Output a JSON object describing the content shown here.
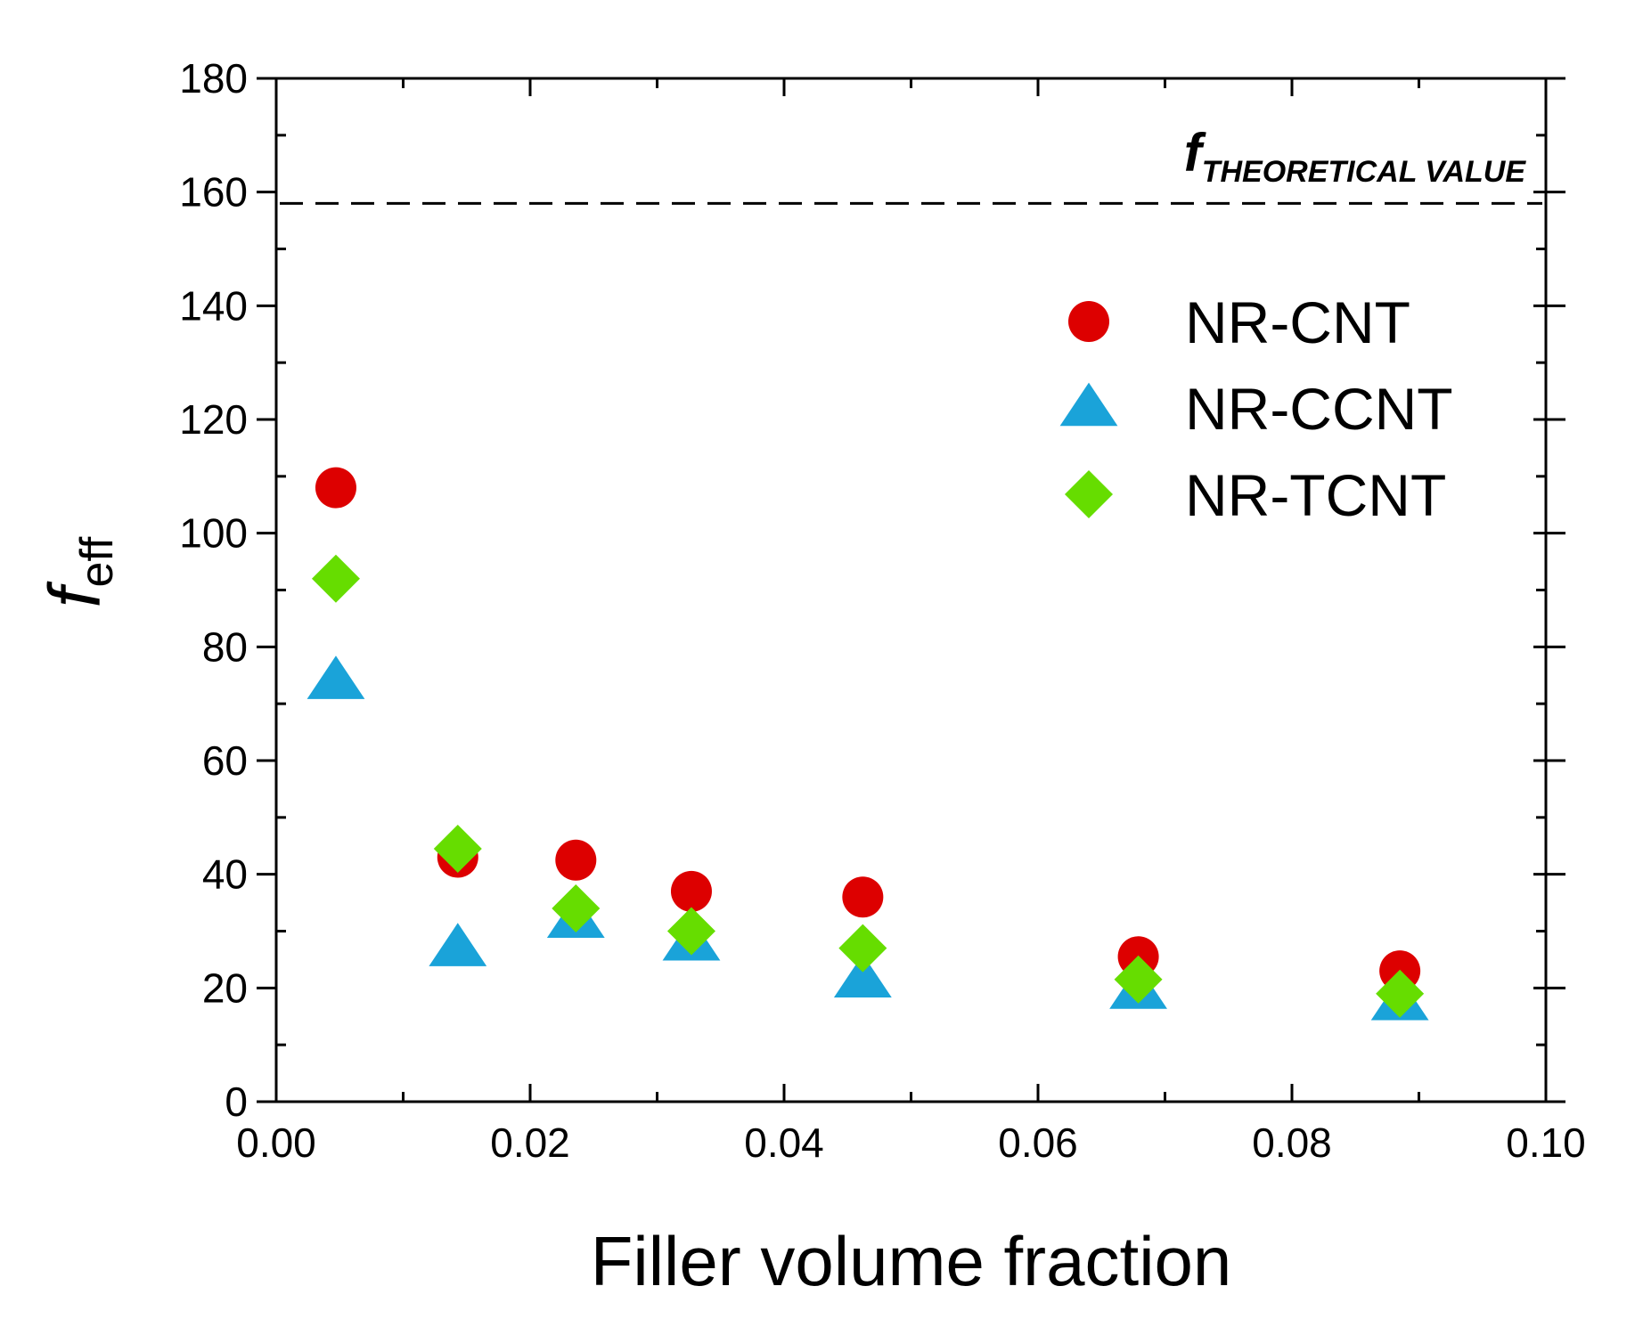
{
  "chart_data": {
    "type": "scatter",
    "title": "",
    "xlabel": "Filler volume fraction",
    "ylabel": {
      "main": "f",
      "sub": "eff"
    },
    "xlim": [
      0,
      0.1
    ],
    "ylim": [
      0,
      180
    ],
    "x_ticks": [
      0.0,
      0.02,
      0.04,
      0.06,
      0.08,
      0.1
    ],
    "x_tick_labels": [
      "0.00",
      "0.02",
      "0.04",
      "0.06",
      "0.08",
      "0.10"
    ],
    "y_ticks": [
      0,
      20,
      40,
      60,
      80,
      100,
      120,
      140,
      160,
      180
    ],
    "y_tick_labels": [
      "0",
      "20",
      "40",
      "60",
      "80",
      "100",
      "120",
      "140",
      "160",
      "180"
    ],
    "legend_position": "top-right",
    "reference_line": {
      "y": 158,
      "style": "dashed",
      "label_main": "f",
      "label_sub": "THEORETICAL VALUE"
    },
    "series": [
      {
        "name": "NR-CNT",
        "marker": "circle",
        "color": "#dd0000",
        "x": [
          0.0047,
          0.0143,
          0.0236,
          0.0327,
          0.0462,
          0.0679,
          0.0885
        ],
        "y": [
          108,
          43,
          42.5,
          37,
          36,
          25.5,
          23
        ]
      },
      {
        "name": "NR-CCNT",
        "marker": "triangle",
        "color": "#1aa3d9",
        "x": [
          0.0047,
          0.0143,
          0.0236,
          0.0327,
          0.0462,
          0.0679,
          0.0885
        ],
        "y": [
          74,
          27,
          32,
          28,
          21.5,
          19.5,
          17.5
        ]
      },
      {
        "name": "NR-TCNT",
        "marker": "diamond",
        "color": "#66dd00",
        "x": [
          0.0047,
          0.0143,
          0.0236,
          0.0327,
          0.0462,
          0.0679,
          0.0885
        ],
        "y": [
          92,
          44.5,
          34,
          30,
          27,
          21.5,
          19
        ]
      }
    ]
  }
}
